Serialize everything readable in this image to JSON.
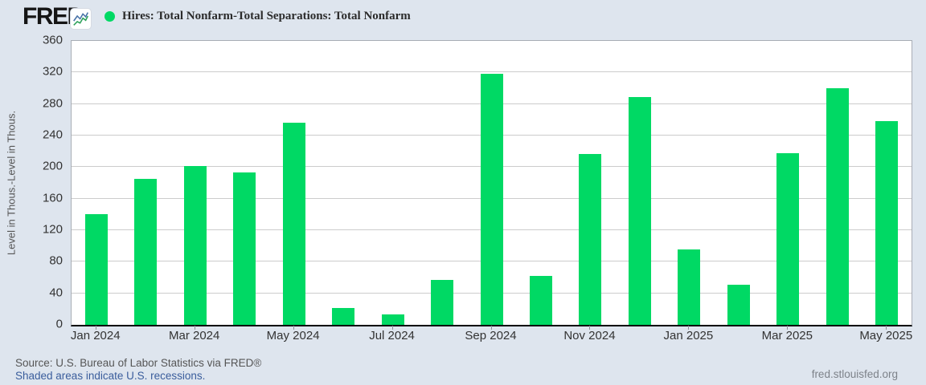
{
  "header": {
    "logo_text": "FRED",
    "logo_registered": "®",
    "legend": {
      "marker_color": "#00d964",
      "label": "Hires: Total Nonfarm-Total Separations: Total Nonfarm"
    }
  },
  "chart_data": {
    "type": "bar",
    "title": "Hires: Total Nonfarm-Total Separations: Total Nonfarm",
    "categories": [
      "Jan 2024",
      "Feb 2024",
      "Mar 2024",
      "Apr 2024",
      "May 2024",
      "Jun 2024",
      "Jul 2024",
      "Aug 2024",
      "Sep 2024",
      "Oct 2024",
      "Nov 2024",
      "Dec 2024",
      "Jan 2025",
      "Feb 2025",
      "Mar 2025",
      "Apr 2025",
      "May 2025"
    ],
    "values": [
      140,
      185,
      201,
      193,
      256,
      21,
      13,
      57,
      318,
      62,
      217,
      289,
      96,
      51,
      218,
      300,
      258
    ],
    "xtick_labels": [
      "Jan 2024",
      "Mar 2024",
      "May 2024",
      "Jul 2024",
      "Sep 2024",
      "Nov 2024",
      "Jan 2025",
      "Mar 2025",
      "May 2025"
    ],
    "xlabel": "",
    "ylabel": "Level in Thous.-Level in Thous.",
    "ylim": [
      0,
      360
    ],
    "ytick_step": 40,
    "bar_color": "#00d964",
    "grid": true,
    "legend_position": "top-left"
  },
  "footer": {
    "source": "Source: U.S. Bureau of Labor Statistics via FRED®",
    "recessions_link": "Shaded areas indicate U.S. recessions.",
    "site_link": "fred.stlouisfed.org"
  },
  "colors": {
    "background": "#dee5ee",
    "plot_background": "#ffffff",
    "gridline": "#cccccc",
    "bar_green": "#00d964",
    "axis_black": "#000000",
    "link_blue": "#3a5d9c",
    "text_dark": "#333333",
    "text_gray": "#555555",
    "text_light_gray": "#7d8289",
    "icon_line_blue": "#4973a8",
    "icon_line_green": "#2ca05a"
  }
}
